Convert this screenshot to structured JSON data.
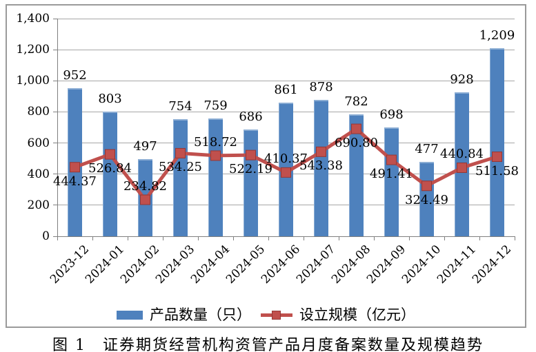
{
  "caption": "图 1　证券期货经营机构资管产品月度备案数量及规模趋势",
  "colors": {
    "bar": "#4e81bd",
    "line": "#c0504d",
    "marker_border": "#953735",
    "gridline": "#a6a6a6",
    "frame_border": "#9a9a9a",
    "text": "#000000"
  },
  "chart_data": {
    "type": "bar",
    "subtype": "bar-line-combo",
    "categories": [
      "2023-12",
      "2024-01",
      "2024-02",
      "2024-03",
      "2024-04",
      "2024-05",
      "2024-06",
      "2024-07",
      "2024-08",
      "2024-09",
      "2024-10",
      "2024-11",
      "2024-12"
    ],
    "series": [
      {
        "name": "产品数量（只）",
        "type": "bar",
        "color": "#4e81bd",
        "values": [
          952,
          803,
          497,
          754,
          759,
          686,
          861,
          878,
          782,
          698,
          477,
          928,
          1209
        ],
        "data_labels": [
          "952",
          "803",
          "497",
          "754",
          "759",
          "686",
          "861",
          "878",
          "782",
          "698",
          "477",
          "928",
          "1,209"
        ]
      },
      {
        "name": "设立规模（亿元）",
        "type": "line",
        "color": "#c0504d",
        "values": [
          444.37,
          526.84,
          234.82,
          534.25,
          518.72,
          522.19,
          410.37,
          543.38,
          690.8,
          491.41,
          324.49,
          440.84,
          511.58
        ],
        "data_labels": [
          "444.37",
          "526.84",
          "234.82",
          "534.25",
          "518.72",
          "522.19",
          "410.37",
          "543.38",
          "690.80",
          "491.41",
          "324.49",
          "440.84",
          "511.58"
        ],
        "label_positions": [
          "below",
          "below",
          "above",
          "below",
          "above",
          "below",
          "above",
          "below",
          "below",
          "below",
          "below",
          "above",
          "below"
        ]
      }
    ],
    "y_axis": {
      "min": 0,
      "max": 1400,
      "step": 200,
      "tick_labels": [
        "0",
        "200",
        "400",
        "600",
        "800",
        "1,000",
        "1,200",
        "1,400"
      ]
    },
    "x_axis": {
      "label_rotation_deg": -45
    },
    "grid": true,
    "legend_position": "bottom",
    "title": ""
  }
}
